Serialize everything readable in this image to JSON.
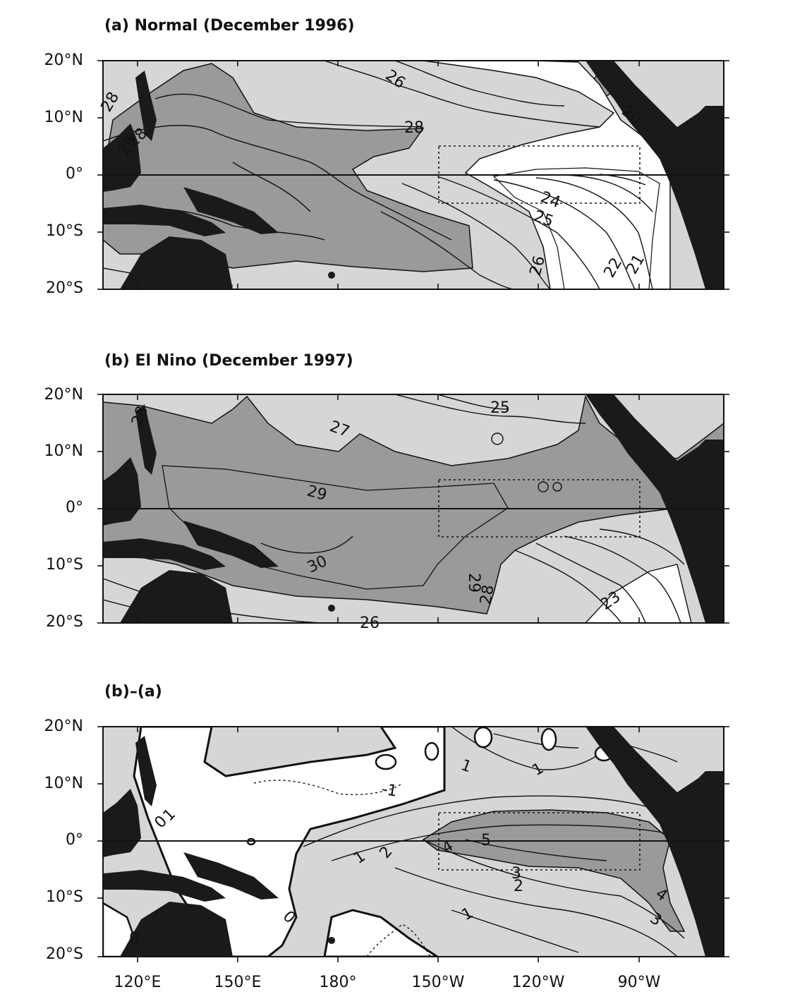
{
  "figure": {
    "panels": [
      {
        "title": "(a) Normal (December 1996)",
        "contour_labels": [
          "26",
          "28",
          "28",
          "29",
          "28",
          "24",
          "25",
          "26",
          "22",
          "21",
          "20"
        ]
      },
      {
        "title": "(b) El Nino (December 1997)",
        "contour_labels": [
          "25",
          "27",
          "29",
          "30",
          "29",
          "28",
          "23",
          "26",
          "28"
        ]
      },
      {
        "title": "(b)–(a)",
        "contour_labels": [
          "-1",
          "1",
          "1",
          "1",
          "0",
          "1",
          "2",
          "4",
          "5",
          "3",
          "2",
          "1",
          "0",
          "4",
          "3",
          "0"
        ]
      }
    ],
    "y_ticks": [
      "20°N",
      "10°N",
      "0°",
      "10°S",
      "20°S"
    ],
    "x_ticks": [
      "120°E",
      "150°E",
      "180°",
      "150°W",
      "120°W",
      "90°W"
    ],
    "box_region": {
      "lon": [
        "150°W",
        "90°W"
      ],
      "lat": [
        "5°N",
        "5°S"
      ]
    },
    "colors": {
      "land": "#1a1a1a",
      "dark_shade": "#9a9a9a",
      "light_shade": "#d6d6d6",
      "white": "#ffffff",
      "line": "#111111"
    }
  }
}
